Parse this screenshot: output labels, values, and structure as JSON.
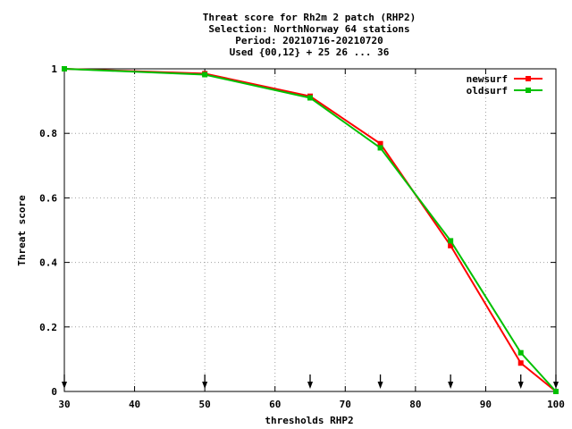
{
  "chart_data": {
    "type": "line",
    "title_lines": [
      "Threat score  for Rh2m 2 patch (RHP2)",
      "Selection: NorthNorway     64 stations",
      "Period: 20210716-20210720",
      "Used {00,12} + 25 26 ... 36"
    ],
    "xlabel": "thresholds RHP2",
    "ylabel": "Threat score",
    "xlim": [
      30,
      100
    ],
    "ylim": [
      0,
      1
    ],
    "xticks": [
      "30",
      "40",
      "50",
      "60",
      "70",
      "80",
      "90",
      "100"
    ],
    "yticks": [
      "0",
      "0.2",
      "0.4",
      "0.6",
      "0.8",
      "1"
    ],
    "grid": true,
    "legend_position": "top-right",
    "arrow_markers_x": [
      30,
      50,
      65,
      75,
      85,
      95,
      100
    ],
    "series": [
      {
        "name": "newsurf",
        "color": "#ff0000",
        "x": [
          30,
          50,
          65,
          75,
          85,
          95,
          100
        ],
        "y": [
          1.0,
          0.985,
          0.915,
          0.768,
          0.452,
          0.088,
          0.0
        ]
      },
      {
        "name": "oldsurf",
        "color": "#00c000",
        "x": [
          30,
          50,
          65,
          75,
          85,
          95,
          100
        ],
        "y": [
          1.0,
          0.982,
          0.91,
          0.755,
          0.467,
          0.12,
          0.0
        ]
      }
    ]
  }
}
